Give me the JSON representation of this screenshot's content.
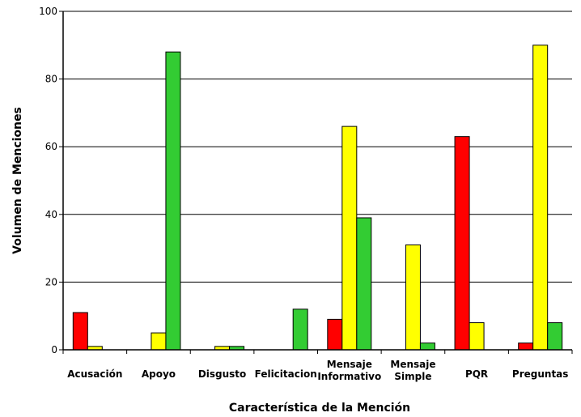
{
  "chart_data": {
    "type": "bar",
    "xlabel": "Característica de la Mención",
    "ylabel": "Volumen de Menciones",
    "ylim": [
      0,
      100
    ],
    "yticks": [
      "0",
      "20",
      "40",
      "60",
      "80",
      "100"
    ],
    "grid": true,
    "categories": [
      [
        "Acusación"
      ],
      [
        "Apoyo"
      ],
      [
        "Disgusto"
      ],
      [
        "Felicitacion"
      ],
      [
        "Mensaje",
        "Informativo"
      ],
      [
        "Mensaje",
        "Simple"
      ],
      [
        "PQR"
      ],
      [
        "Preguntas"
      ]
    ],
    "series": [
      {
        "color": "#ff0000",
        "values": [
          11,
          0,
          0,
          0,
          9,
          0,
          63,
          2
        ]
      },
      {
        "color": "#ffff00",
        "values": [
          1,
          5,
          1,
          0,
          66,
          31,
          8,
          90
        ]
      },
      {
        "color": "#33cc33",
        "values": [
          0,
          88,
          1,
          12,
          39,
          2,
          0,
          8
        ]
      }
    ]
  }
}
